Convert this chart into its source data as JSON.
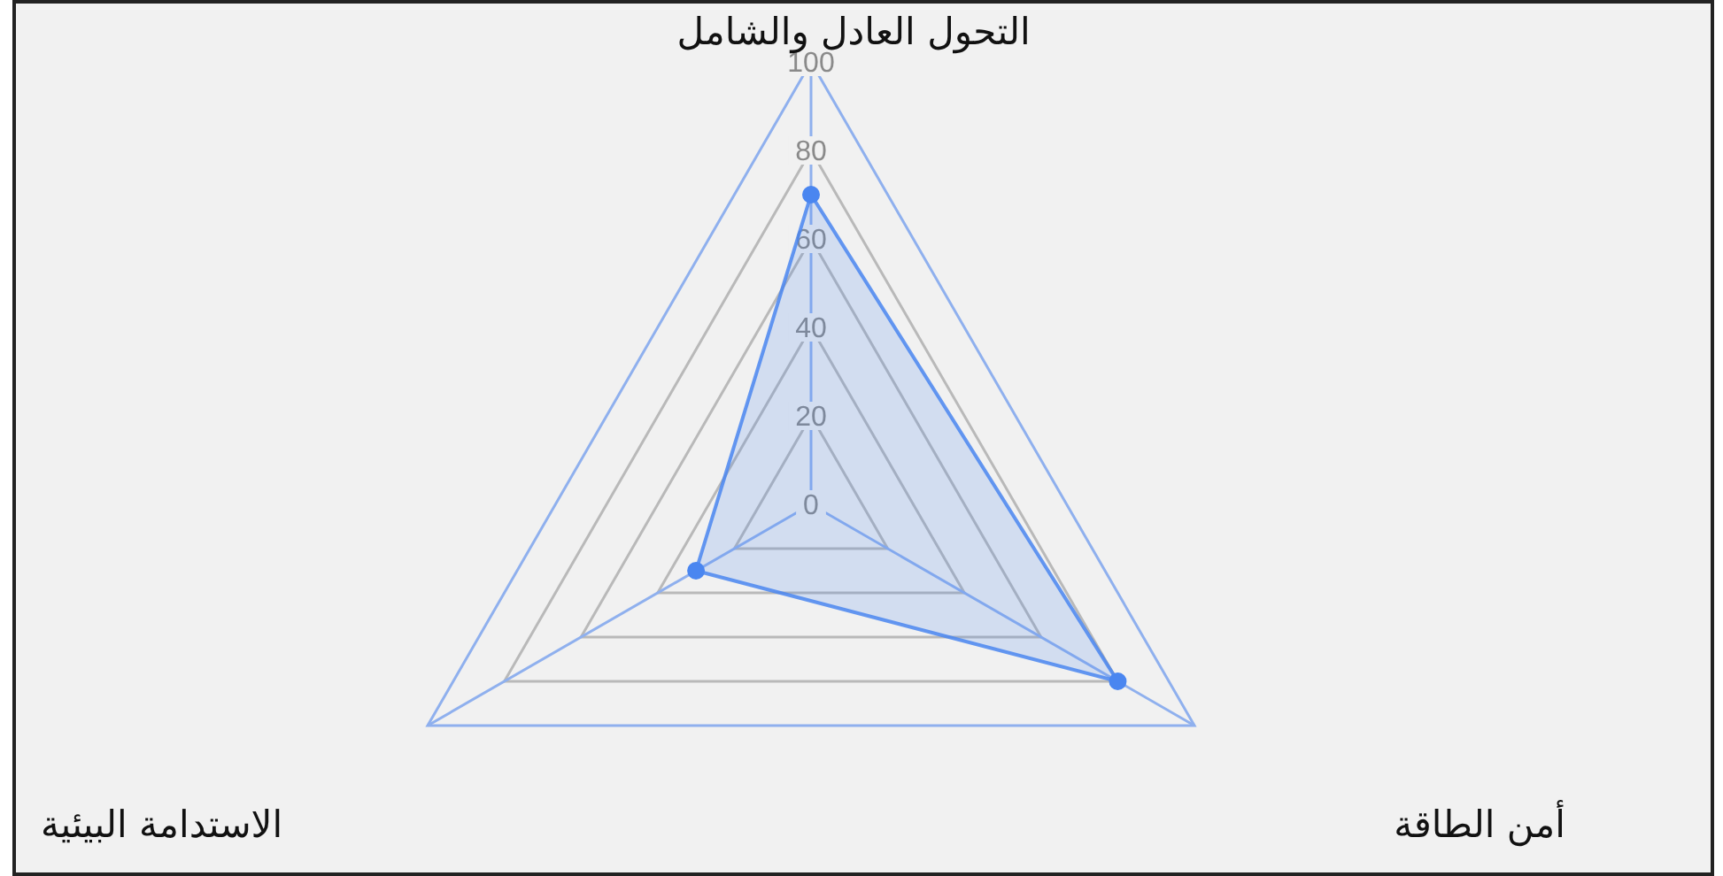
{
  "chart_data": {
    "type": "radar",
    "categories": [
      "التحول العادل والشامل",
      "أمن الطاقة",
      "الاستدامة البيئية"
    ],
    "series": [
      {
        "color": "#4a86f0",
        "values": [
          70,
          80,
          30
        ]
      }
    ],
    "ylim": [
      0,
      100
    ],
    "yticks": [
      0,
      20,
      40,
      60,
      80,
      100
    ],
    "grid": true,
    "legend": false,
    "marker": "circle"
  }
}
